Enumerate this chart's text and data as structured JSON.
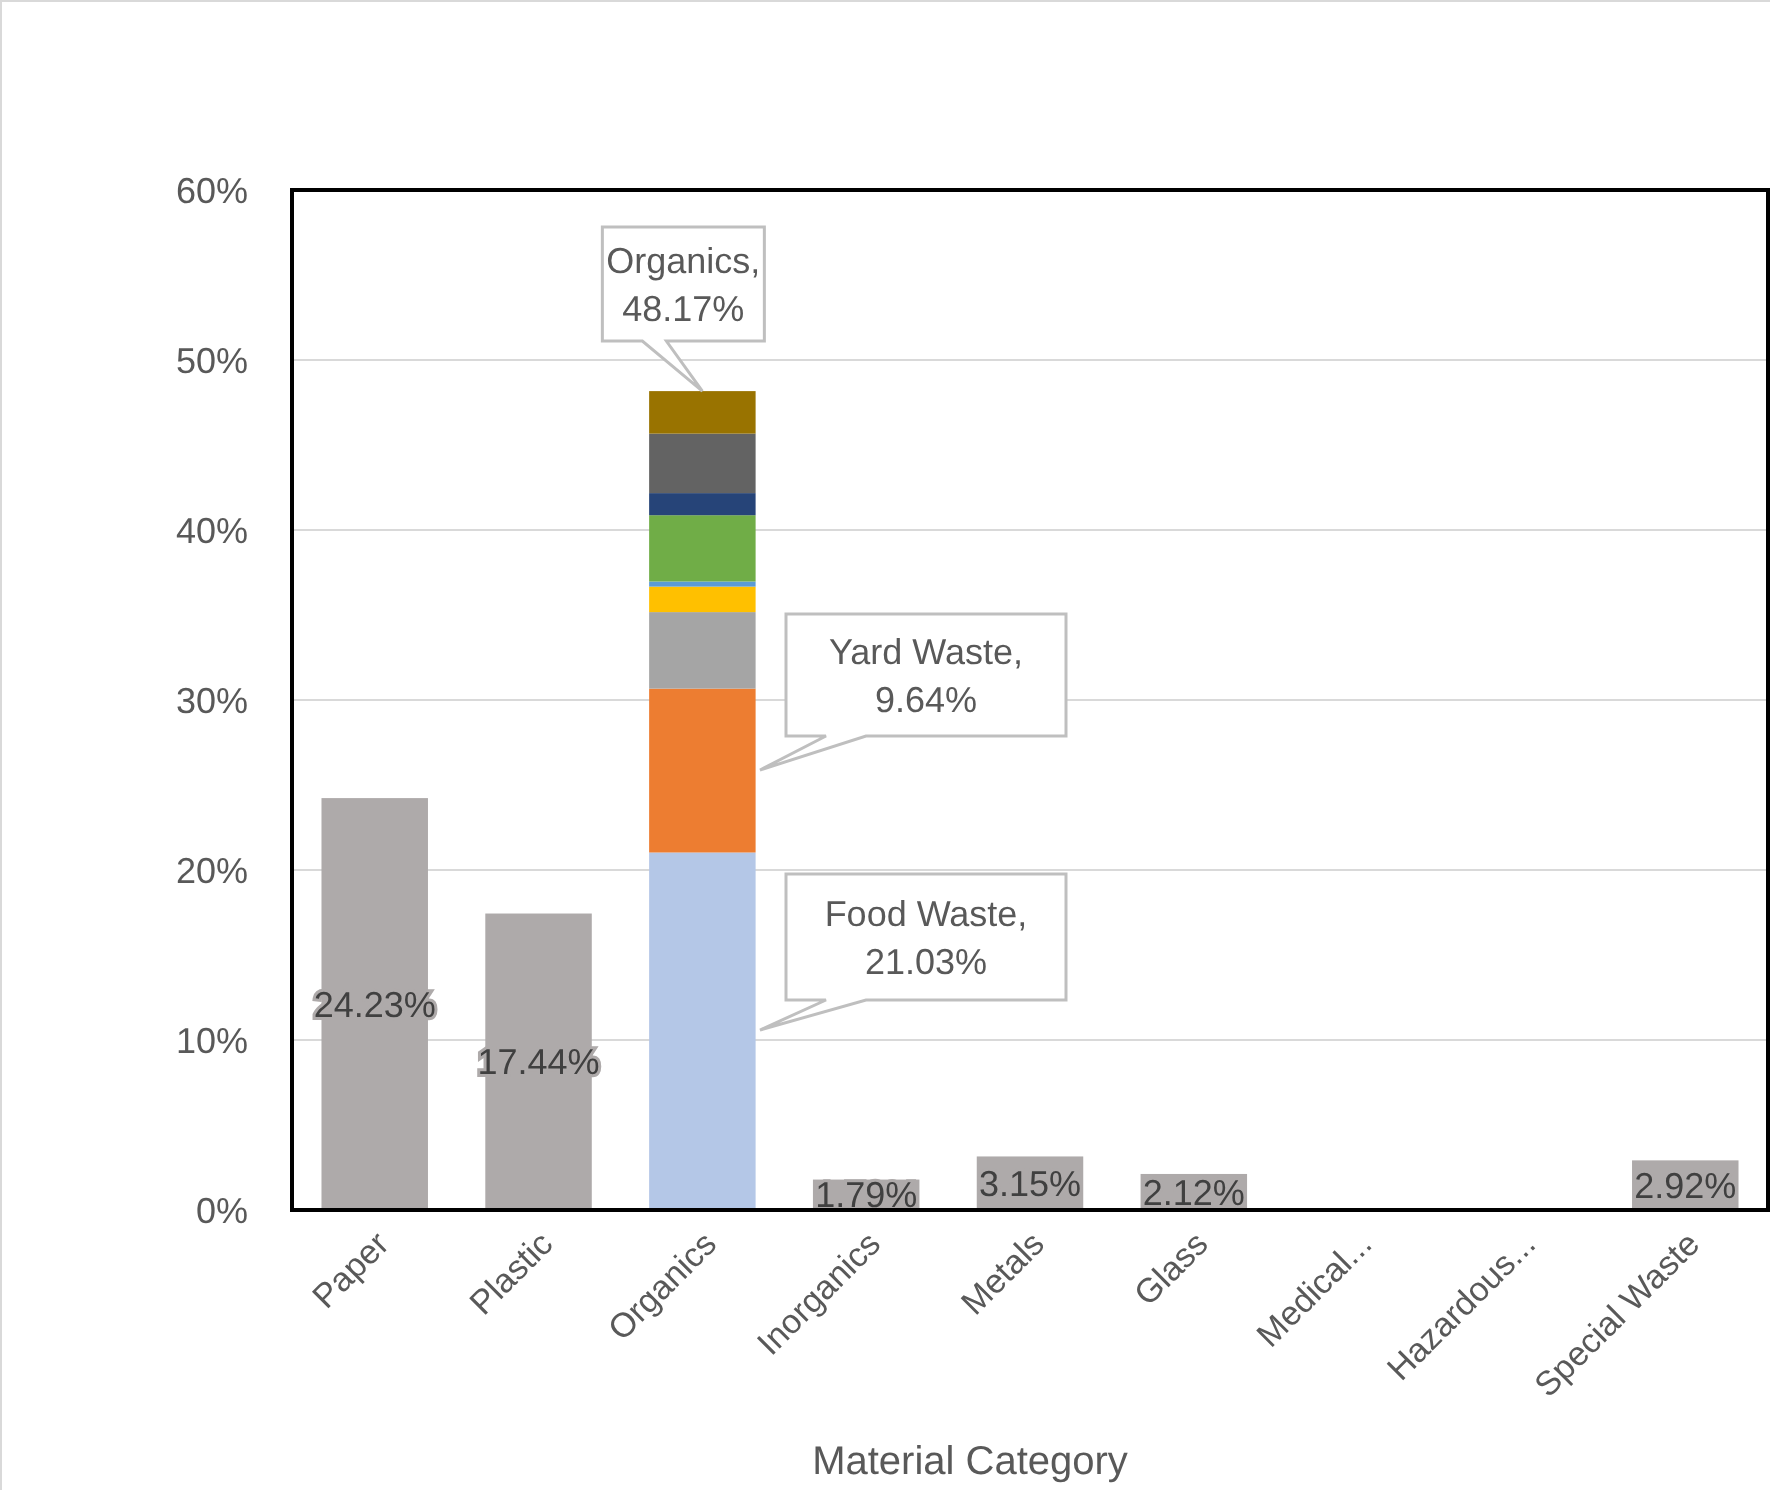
{
  "chart_data": {
    "type": "bar",
    "stacked": true,
    "xlabel": "Material Category",
    "categories": [
      "Paper",
      "Plastic",
      "Organics",
      "Inorganics",
      "Metals",
      "Glass",
      "Medical...",
      "Hazardous...",
      "Special Waste"
    ],
    "series": [
      {
        "color": "#aeaaaa",
        "values": [
          24.23,
          17.44,
          null,
          1.79,
          3.15,
          2.12,
          null,
          null,
          2.92
        ],
        "value_labels": [
          "24.23%",
          "17.44%",
          null,
          "1.79%",
          "3.15%",
          "2.12%",
          null,
          null,
          "2.92%"
        ]
      },
      {
        "color": "#b4c7e7",
        "values": [
          null,
          null,
          21.03,
          null,
          null,
          null,
          null,
          null,
          null
        ]
      },
      {
        "color": "#ed7d31",
        "values": [
          null,
          null,
          9.64,
          null,
          null,
          null,
          null,
          null,
          null
        ]
      },
      {
        "color": "#a5a5a5",
        "values": [
          null,
          null,
          4.5,
          null,
          null,
          null,
          null,
          null,
          null
        ]
      },
      {
        "color": "#ffc000",
        "values": [
          null,
          null,
          1.5,
          null,
          null,
          null,
          null,
          null,
          null
        ]
      },
      {
        "color": "#5b9bd5",
        "values": [
          null,
          null,
          0.3,
          null,
          null,
          null,
          null,
          null,
          null
        ]
      },
      {
        "color": "#70ad47",
        "values": [
          null,
          null,
          3.9,
          null,
          null,
          null,
          null,
          null,
          null
        ]
      },
      {
        "color": "#264478",
        "values": [
          null,
          null,
          1.3,
          null,
          null,
          null,
          null,
          null,
          null
        ]
      },
      {
        "color": "#636363",
        "values": [
          null,
          null,
          3.5,
          null,
          null,
          null,
          null,
          null,
          null
        ]
      },
      {
        "color": "#997300",
        "values": [
          null,
          null,
          2.5,
          null,
          null,
          null,
          null,
          null,
          null
        ]
      }
    ],
    "ylim": [
      0,
      60
    ],
    "yticks": [
      {
        "value": 0,
        "label": "0%"
      },
      {
        "value": 10,
        "label": "10%"
      },
      {
        "value": 20,
        "label": "20%"
      },
      {
        "value": 30,
        "label": "30%"
      },
      {
        "value": 40,
        "label": "40%"
      },
      {
        "value": 50,
        "label": "50%"
      },
      {
        "value": 60,
        "label": "60%"
      }
    ],
    "grid": "y",
    "annotations": [
      {
        "text": "Organics, 48.17%",
        "x": "Organics",
        "y": 48.17
      },
      "Yard Waste, 9.64%",
      "Food Waste, 21.03%"
    ]
  }
}
